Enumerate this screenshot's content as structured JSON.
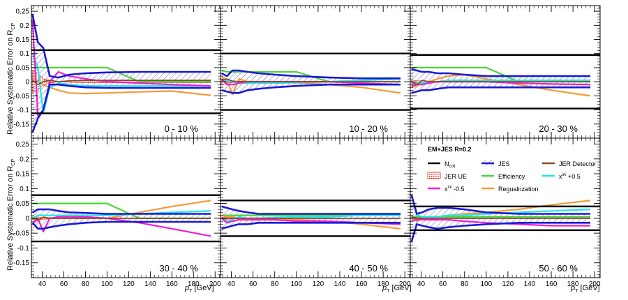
{
  "figure": {
    "ylabel": "Relative Systematic Error on R",
    "ylabel_sub": "CP",
    "xlabel_p": "p",
    "xlabel_sub": "T",
    "xlabel_unit": " [GeV]"
  },
  "legend": {
    "title": "EM+JES R=0.2",
    "entries": [
      {
        "name": "N_coll",
        "label": "N",
        "sub": "coll",
        "sup": "",
        "suffix": "",
        "color": "#000000",
        "style": "line"
      },
      {
        "name": "JES",
        "label": "JES",
        "sub": "",
        "sup": "",
        "suffix": "",
        "color": "#1a1ad4",
        "style": "hatch"
      },
      {
        "name": "JER-Detector",
        "label": "JER Detector",
        "sub": "",
        "sup": "",
        "suffix": "",
        "color": "#8b4a2b",
        "style": "line"
      },
      {
        "name": "JER-UE",
        "label": "JER UE",
        "sub": "",
        "sup": "",
        "suffix": "",
        "color": "#e8231f",
        "style": "box"
      },
      {
        "name": "Efficiency",
        "label": "Efficiency",
        "sub": "",
        "sup": "",
        "suffix": "",
        "color": "#4cd13a",
        "style": "line"
      },
      {
        "name": "xini-plus",
        "label": "x",
        "sub": "",
        "sup": "ini",
        "suffix": " +0.5",
        "color": "#1fe8e0",
        "style": "line"
      },
      {
        "name": "xini-minus",
        "label": "x",
        "sub": "",
        "sup": "ini",
        "suffix": " -0.5",
        "color": "#f01cd8",
        "style": "line"
      },
      {
        "name": "Regularization",
        "label": "Regualrization",
        "sub": "",
        "sup": "",
        "suffix": "",
        "color": "#f59a35",
        "style": "line"
      }
    ]
  },
  "chart_data": {
    "type": "line",
    "xlim": [
      30,
      205
    ],
    "ylim": [
      -0.2,
      0.27
    ],
    "x_ticks": [
      40,
      60,
      80,
      100,
      120,
      140,
      160,
      180,
      200
    ],
    "y_ticks": [
      -0.15,
      -0.1,
      -0.05,
      0,
      0.05,
      0.1,
      0.15,
      0.2,
      0.25
    ],
    "y_tick_labels": [
      "-0.15",
      "-0.1",
      "-0.05",
      "0",
      "0.05",
      "0.1",
      "0.15",
      "0.2",
      "0.25"
    ],
    "panels": [
      {
        "label": "0 - 10 %",
        "x": [
          31,
          36,
          41,
          47,
          55,
          65,
          80,
          100,
          130,
          160,
          196
        ],
        "ncoll": 0.112,
        "jes_upper": [
          0.24,
          0.14,
          0.12,
          0.02,
          0.015,
          0.025,
          0.03,
          0.033,
          0.035,
          0.035,
          0.035
        ],
        "jes_lower": [
          -0.18,
          -0.13,
          -0.1,
          -0.01,
          -0.01,
          -0.015,
          -0.02,
          -0.022,
          -0.022,
          -0.022,
          -0.022
        ],
        "jer_det": [
          0.005,
          -0.01,
          0.0,
          0.005,
          0.0,
          0.003,
          0.005,
          0.005,
          0.005,
          0.005,
          0.005
        ],
        "jer_ue": [
          0.04,
          0.03,
          0.01,
          0.005,
          0.0,
          0.002,
          0.003,
          0.003,
          0.003,
          0.003,
          0.003
        ],
        "eff": [
          0.05,
          0.05,
          0.05,
          0.05,
          0.05,
          0.05,
          0.05,
          0.05,
          0.0,
          0.0,
          0.0
        ],
        "xplus": [
          0.1,
          0.05,
          -0.11,
          -0.02,
          -0.005,
          -0.01,
          -0.015,
          -0.015,
          -0.015,
          -0.015,
          -0.015
        ],
        "xminus": [
          0.22,
          -0.12,
          -0.1,
          0.0,
          0.035,
          0.02,
          0.01,
          0.0,
          -0.005,
          -0.01,
          -0.015
        ],
        "reg": [
          0.02,
          0.0,
          -0.01,
          -0.02,
          -0.03,
          -0.04,
          -0.042,
          -0.04,
          -0.036,
          -0.033,
          -0.048
        ]
      },
      {
        "label": "10 - 20 %",
        "x": [
          31,
          36,
          41,
          47,
          55,
          65,
          80,
          100,
          130,
          160,
          196
        ],
        "ncoll": 0.1,
        "jes_upper": [
          0.03,
          0.02,
          0.04,
          0.04,
          0.035,
          0.03,
          0.025,
          0.02,
          0.015,
          0.012,
          0.012
        ],
        "jes_lower": [
          -0.03,
          -0.035,
          -0.04,
          -0.04,
          -0.03,
          -0.025,
          -0.02,
          -0.015,
          -0.01,
          -0.01,
          -0.01
        ],
        "jer_det": [
          0.005,
          0.01,
          0.002,
          0.0,
          0.0,
          0.0,
          0.0,
          0.0,
          0.0,
          0.0,
          0.0
        ],
        "jer_ue": [
          0.01,
          0.005,
          0.003,
          0.002,
          0.001,
          0.001,
          0.001,
          0.001,
          0.001,
          0.001,
          0.001
        ],
        "eff": [
          0.04,
          0.035,
          0.035,
          0.035,
          0.035,
          0.035,
          0.035,
          0.035,
          0.0,
          0.0,
          0.0
        ],
        "xplus": [
          0.0,
          0.005,
          0.0,
          -0.005,
          -0.005,
          -0.005,
          -0.005,
          -0.003,
          0.0,
          0.005,
          0.01
        ],
        "xminus": [
          0.01,
          -0.01,
          -0.01,
          -0.005,
          0.0,
          0.0,
          0.0,
          0.0,
          0.0,
          -0.005,
          -0.01
        ],
        "reg": [
          0.02,
          0.005,
          -0.045,
          0.01,
          0.0,
          0.0,
          -0.002,
          -0.004,
          -0.01,
          -0.02,
          -0.04
        ]
      },
      {
        "label": "20 - 30 %",
        "x": [
          31,
          36,
          41,
          47,
          55,
          65,
          80,
          100,
          130,
          160,
          196
        ],
        "ncoll": 0.095,
        "jes_upper": [
          0.045,
          0.04,
          0.035,
          0.035,
          0.03,
          0.03,
          0.025,
          0.02,
          0.02,
          0.02,
          0.02
        ],
        "jes_lower": [
          -0.04,
          -0.035,
          -0.03,
          -0.03,
          -0.025,
          -0.02,
          -0.02,
          -0.02,
          -0.02,
          -0.02,
          -0.02
        ],
        "jer_det": [
          0.0,
          -0.01,
          0.005,
          0.0,
          0.0,
          0.0,
          0.0,
          0.0,
          0.0,
          0.0,
          0.0
        ],
        "jer_ue": [
          0.005,
          0.004,
          0.003,
          0.002,
          0.001,
          0.001,
          0.001,
          0.001,
          0.001,
          0.001,
          0.001
        ],
        "eff": [
          0.05,
          0.05,
          0.05,
          0.05,
          0.05,
          0.05,
          0.05,
          0.05,
          0.0,
          0.0,
          0.0
        ],
        "xplus": [
          -0.01,
          -0.005,
          -0.005,
          0.0,
          0.0,
          0.005,
          0.005,
          0.005,
          0.005,
          0.005,
          0.005
        ],
        "xminus": [
          -0.015,
          -0.01,
          -0.01,
          -0.005,
          0.0,
          0.0,
          0.0,
          0.0,
          -0.005,
          -0.008,
          -0.01
        ],
        "reg": [
          -0.02,
          -0.015,
          -0.005,
          0.0,
          0.01,
          0.02,
          0.025,
          0.01,
          -0.01,
          -0.03,
          -0.05
        ]
      },
      {
        "label": "30 - 40 %",
        "x": [
          31,
          36,
          41,
          47,
          55,
          65,
          80,
          100,
          130,
          160,
          196
        ],
        "ncoll": 0.078,
        "jes_upper": [
          0.02,
          0.03,
          0.03,
          0.03,
          0.025,
          0.02,
          0.018,
          0.015,
          0.015,
          0.015,
          0.015
        ],
        "jes_lower": [
          -0.015,
          -0.035,
          -0.035,
          -0.03,
          -0.025,
          -0.02,
          -0.015,
          -0.012,
          -0.012,
          -0.012,
          -0.012
        ],
        "jer_det": [
          0.0,
          -0.005,
          0.003,
          0.0,
          0.0,
          0.0,
          0.0,
          0.0,
          0.0,
          0.0,
          0.0
        ],
        "jer_ue": [
          0.005,
          0.004,
          0.003,
          0.002,
          0.001,
          0.001,
          0.001,
          0.001,
          0.001,
          0.001,
          0.001
        ],
        "eff": [
          0.05,
          0.05,
          0.05,
          0.05,
          0.05,
          0.05,
          0.05,
          0.05,
          0.0,
          0.0,
          0.0
        ],
        "xplus": [
          0.0,
          0.01,
          0.01,
          0.01,
          0.01,
          0.01,
          0.01,
          0.01,
          0.015,
          0.02,
          0.025
        ],
        "xminus": [
          -0.02,
          0.0,
          -0.045,
          0.0,
          0.005,
          0.005,
          0.005,
          0.0,
          -0.015,
          -0.035,
          -0.06
        ],
        "reg": [
          0.0,
          -0.01,
          0.005,
          0.0,
          0.0,
          0.0,
          0.0,
          0.0,
          0.02,
          0.04,
          0.06
        ]
      },
      {
        "label": "40 - 50 %",
        "x": [
          31,
          36,
          41,
          47,
          55,
          65,
          80,
          100,
          130,
          160,
          196
        ],
        "ncoll": 0.06,
        "jes_upper": [
          0.04,
          0.035,
          0.03,
          0.025,
          0.02,
          0.015,
          0.015,
          0.015,
          0.015,
          0.015,
          0.015
        ],
        "jes_lower": [
          -0.035,
          -0.03,
          -0.025,
          -0.02,
          -0.02,
          -0.015,
          -0.015,
          -0.015,
          -0.015,
          -0.015,
          -0.015
        ],
        "jer_det": [
          0.0,
          0.0,
          0.0,
          0.0,
          0.0,
          0.0,
          0.0,
          0.0,
          0.0,
          0.0,
          0.0
        ],
        "jer_ue": [
          0.003,
          0.003,
          0.002,
          0.002,
          0.001,
          0.001,
          0.001,
          0.001,
          0.001,
          0.001,
          0.001
        ],
        "eff": [
          0.01,
          0.01,
          0.01,
          0.01,
          0.01,
          0.01,
          0.01,
          0.01,
          0.01,
          0.01,
          0.01
        ],
        "xplus": [
          0.0,
          -0.01,
          -0.005,
          0.005,
          0.0,
          0.0,
          0.003,
          0.005,
          0.005,
          0.01,
          0.01
        ],
        "xminus": [
          0.0,
          -0.015,
          -0.01,
          -0.005,
          -0.005,
          -0.005,
          -0.005,
          -0.01,
          -0.01,
          -0.015,
          -0.02
        ],
        "reg": [
          0.01,
          0.005,
          0.005,
          0.0,
          0.0,
          0.0,
          0.0,
          -0.005,
          -0.01,
          -0.02,
          -0.035
        ]
      },
      {
        "label": "50 - 60 %",
        "x": [
          31,
          36,
          41,
          47,
          55,
          65,
          80,
          100,
          130,
          160,
          196
        ],
        "ncoll": 0.04,
        "jes_upper": [
          0.08,
          0.015,
          0.02,
          0.03,
          0.035,
          0.035,
          0.03,
          0.02,
          0.015,
          0.015,
          0.015
        ],
        "jes_lower": [
          -0.08,
          -0.02,
          -0.025,
          -0.03,
          -0.035,
          -0.03,
          -0.025,
          -0.02,
          -0.015,
          -0.015,
          -0.015
        ],
        "jer_det": [
          0.005,
          0.0,
          0.0,
          0.0,
          0.0,
          0.0,
          0.0,
          0.0,
          0.0,
          0.0,
          0.0
        ],
        "jer_ue": [
          0.003,
          0.003,
          0.002,
          0.002,
          0.001,
          0.001,
          0.001,
          0.001,
          0.001,
          0.001,
          0.001
        ],
        "eff": [
          0.005,
          0.005,
          0.005,
          0.005,
          0.005,
          0.005,
          0.005,
          0.005,
          0.005,
          0.005,
          0.005
        ],
        "xplus": [
          0.0,
          0.01,
          0.005,
          0.005,
          0.005,
          0.01,
          0.01,
          0.015,
          0.02,
          0.025,
          0.03
        ],
        "xminus": [
          -0.01,
          -0.005,
          -0.005,
          -0.005,
          -0.005,
          -0.005,
          -0.01,
          -0.015,
          -0.02,
          -0.025,
          -0.025
        ],
        "reg": [
          0.01,
          -0.01,
          0.0,
          0.0,
          0.005,
          0.01,
          0.015,
          0.02,
          0.03,
          0.045,
          0.06
        ]
      }
    ]
  }
}
